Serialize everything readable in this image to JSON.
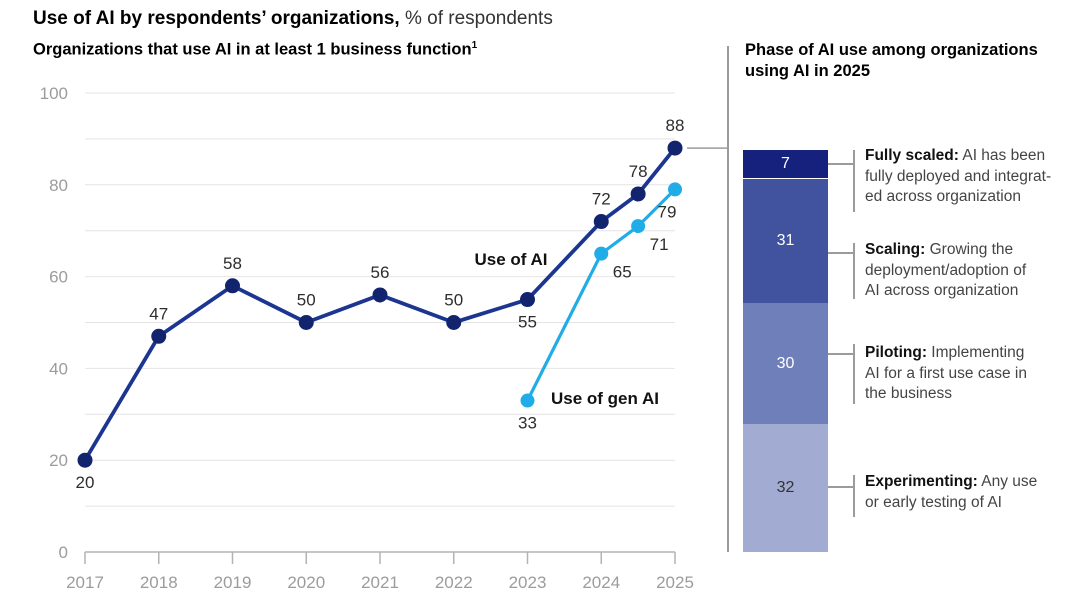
{
  "header": {
    "title_bold": "Use of AI by respondents’ organizations,",
    "title_regular": " % of respondents"
  },
  "chart": {
    "subtitle": "Organizations that use AI in at least 1 business function",
    "subtitle_sup": "1"
  },
  "right_panel": {
    "title": "Phase of AI use among organizations using AI in 2025",
    "phases": [
      {
        "term": "Fully scaled:",
        "term_rest": " AI has been",
        "lines": [
          "fully deployed and integrat-",
          "ed across organization"
        ],
        "value_color": "#ffffff"
      },
      {
        "term": "Scaling:",
        "term_rest": " Growing the",
        "lines": [
          "deployment/adoption of",
          "AI across organization"
        ],
        "value_color": "#ffffff"
      },
      {
        "term": "Piloting:",
        "term_rest": " Implementing",
        "lines": [
          "AI for a first use case in",
          "the business"
        ],
        "value_color": "#ffffff"
      },
      {
        "term": "Experimenting:",
        "term_rest": " Any use",
        "lines": [
          "or early testing of AI"
        ],
        "value_color": "#333333"
      }
    ]
  },
  "colors": {
    "grid": "#e4e4e4",
    "axis": "#b3b3b3",
    "tick_label": "#9c9c9c",
    "data_label": "#2d2d2d",
    "series_label": "#111111",
    "bracket": "#9b9b9b"
  },
  "chart_data": [
    {
      "type": "line",
      "title": "Organizations that use AI in at least 1 business function",
      "ylabel": "% of respondents",
      "ylim": [
        0,
        100
      ],
      "yticks": [
        0,
        20,
        40,
        60,
        80,
        100
      ],
      "xticks": [
        "2017",
        "2018",
        "2019",
        "2020",
        "2021",
        "2022",
        "2023",
        "2024",
        "2025"
      ],
      "grid_interval": 10,
      "legend_position": "inline-annotations",
      "series": [
        {
          "name": "Use of AI",
          "color": "#1c3591",
          "marker_color": "#13246f",
          "points": [
            {
              "x": 2017,
              "y": 20,
              "label_pos": "below"
            },
            {
              "x": 2018,
              "y": 47,
              "label_pos": "above"
            },
            {
              "x": 2019,
              "y": 58,
              "label_pos": "above"
            },
            {
              "x": 2020,
              "y": 50,
              "label_pos": "above"
            },
            {
              "x": 2021,
              "y": 56,
              "label_pos": "above"
            },
            {
              "x": 2022,
              "y": 50,
              "label_pos": "above"
            },
            {
              "x": 2023,
              "y": 55,
              "label_pos": "below"
            },
            {
              "x": 2024,
              "y": 72,
              "label_pos": "above"
            },
            {
              "x": 2024.5,
              "y": 78,
              "label_pos": "above"
            },
            {
              "x": 2025,
              "y": 88,
              "label_pos": "above"
            }
          ]
        },
        {
          "name": "Use of gen AI",
          "color": "#20ace7",
          "marker_color": "#20ace7",
          "points": [
            {
              "x": 2023,
              "y": 33,
              "label_pos": "below"
            },
            {
              "x": 2024,
              "y": 65,
              "label_pos": "below-right"
            },
            {
              "x": 2024.5,
              "y": 71,
              "label_pos": "below-right"
            },
            {
              "x": 2025,
              "y": 79,
              "label_pos": "below-left"
            }
          ]
        }
      ]
    },
    {
      "type": "bar",
      "stacked": true,
      "title": "Phase of AI use among organizations using AI in 2025",
      "total": 100,
      "segments": [
        {
          "label": "Fully scaled",
          "value": 7,
          "color": "#15217c"
        },
        {
          "label": "Scaling",
          "value": 31,
          "color": "#41539e"
        },
        {
          "label": "Piloting",
          "value": 30,
          "color": "#6f7fba"
        },
        {
          "label": "Experimenting",
          "value": 32,
          "color": "#a2abd1"
        }
      ]
    }
  ]
}
